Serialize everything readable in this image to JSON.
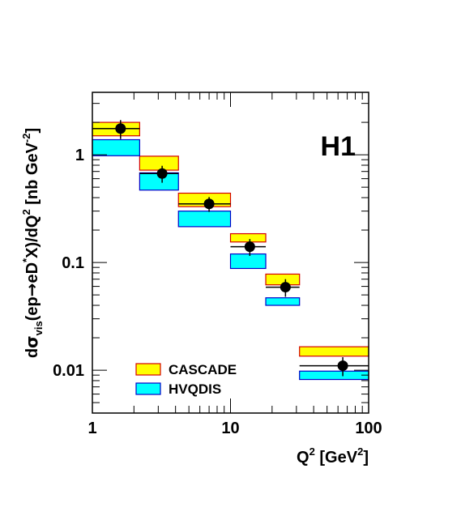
{
  "chart_data": {
    "type": "bar",
    "x_scale": "log",
    "y_scale": "log",
    "xlim": [
      1,
      100
    ],
    "ylim": [
      0.004,
      3.8
    ],
    "x_ticks": [
      1,
      10,
      100
    ],
    "x_tick_labels": [
      "1",
      "10",
      "100"
    ],
    "y_ticks": [
      0.01,
      0.1,
      1
    ],
    "y_tick_labels": [
      "0.01",
      "0.1",
      "1"
    ],
    "xlabel": {
      "pre": "Q",
      "sup": "2",
      "mid": " [GeV",
      "sup2": "2",
      "post": "]"
    },
    "ylabel": {
      "d": "d",
      "sigma": "σ",
      "sub": "vis",
      "open": "(ep",
      "arrow": "→",
      "eD": "eD",
      "star": "*",
      "rest": "X)/dQ",
      "sup2": "2",
      "units": " [nb GeV",
      "unit_exp": "-2",
      "close": "]"
    },
    "experiment_label": "H1",
    "bins": [
      [
        1,
        2.2
      ],
      [
        2.2,
        4.2
      ],
      [
        4.2,
        10
      ],
      [
        10,
        18
      ],
      [
        18,
        31.6
      ],
      [
        31.6,
        100
      ]
    ],
    "series": [
      {
        "name": "CASCADE",
        "color": "#ffff00",
        "edge": "#d40000",
        "lo": [
          1.5,
          0.72,
          0.33,
          0.155,
          0.062,
          0.0135
        ],
        "hi": [
          2.0,
          0.97,
          0.44,
          0.185,
          0.078,
          0.0165
        ]
      },
      {
        "name": "HVQDIS",
        "color": "#00ffff",
        "edge": "#0000c8",
        "lo": [
          0.98,
          0.47,
          0.215,
          0.088,
          0.04,
          0.0082
        ],
        "hi": [
          1.38,
          0.68,
          0.3,
          0.12,
          0.047,
          0.0098
        ]
      }
    ],
    "data_points": {
      "x": [
        1.6,
        3.2,
        7.0,
        13.8,
        25.0,
        65.0
      ],
      "y": [
        1.75,
        0.67,
        0.35,
        0.14,
        0.059,
        0.011
      ],
      "y_err": [
        0.35,
        0.12,
        0.055,
        0.025,
        0.011,
        0.0022
      ]
    },
    "legend": {
      "position": "bottom-left",
      "entries": [
        "CASCADE",
        "HVQDIS"
      ]
    }
  }
}
